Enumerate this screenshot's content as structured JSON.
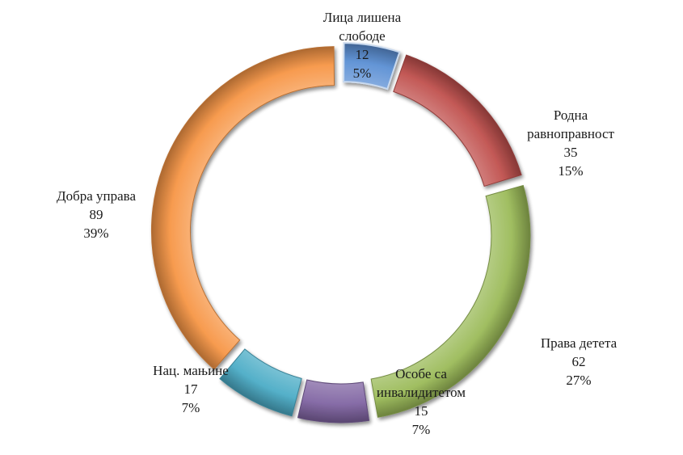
{
  "chart_data": {
    "type": "pie",
    "variant": "doughnut",
    "title": "",
    "legend": "none",
    "categories": [
      "Лица лишена слободе",
      "Родна равноправност",
      "Права детета",
      "Особе са инвалидитетом",
      "Нац. мањине",
      "Добра управа"
    ],
    "slices": [
      {
        "name_lines": [
          "Лица лишена",
          "слободе"
        ],
        "value": 12,
        "percent_label": "5%",
        "value_label": "12",
        "color": "#5b8fd4"
      },
      {
        "name_lines": [
          "Родна",
          "равноправност"
        ],
        "value": 35,
        "percent_label": "15%",
        "value_label": "35",
        "color": "#c0504d"
      },
      {
        "name_lines": [
          "Права детета"
        ],
        "value": 62,
        "percent_label": "27%",
        "value_label": "62",
        "color": "#9bbb59"
      },
      {
        "name_lines": [
          "Особе са",
          "инвалидитетом"
        ],
        "value": 15,
        "percent_label": "7%",
        "value_label": "15",
        "color": "#8064a2"
      },
      {
        "name_lines": [
          "Нац. мањине"
        ],
        "value": 17,
        "percent_label": "7%",
        "value_label": "17",
        "color": "#4bacc6"
      },
      {
        "name_lines": [
          "Добра управа"
        ],
        "value": 89,
        "percent_label": "39%",
        "value_label": "89",
        "color": "#f79646"
      }
    ]
  }
}
